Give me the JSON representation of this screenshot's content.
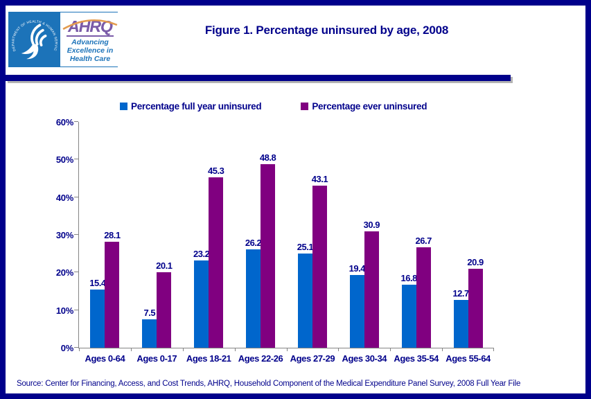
{
  "header": {
    "title": "Figure 1. Percentage uninsured by age, 2008",
    "logo": {
      "seal_text": "DEPARTMENT OF HEALTH & HUMAN SERVICES • USA",
      "acronym": "AHRQ",
      "tagline": "Advancing Excellence in Health Care"
    }
  },
  "chart_data": {
    "type": "bar",
    "title": "Figure 1. Percentage uninsured by age, 2008",
    "categories": [
      "Ages 0-64",
      "Ages 0-17",
      "Ages 18-21",
      "Ages 22-26",
      "Ages 27-29",
      "Ages 30-34",
      "Ages 35-54",
      "Ages 55-64"
    ],
    "series": [
      {
        "name": "Percentage full year uninsured",
        "color": "#0066CC",
        "values": [
          15.4,
          7.5,
          23.2,
          26.2,
          25.1,
          19.4,
          16.8,
          12.7
        ]
      },
      {
        "name": "Percentage ever uninsured",
        "color": "#800080",
        "values": [
          28.1,
          20.1,
          45.3,
          48.8,
          43.1,
          30.9,
          26.7,
          20.9
        ]
      }
    ],
    "ylabel": "",
    "xlabel": "",
    "ylim": [
      0,
      60
    ],
    "ytick_step": 10,
    "ytick_labels": [
      "0%",
      "10%",
      "20%",
      "30%",
      "40%",
      "50%",
      "60%"
    ],
    "grid": false,
    "legend_position": "top",
    "data_labels": true
  },
  "footer": {
    "source": "Source: Center for Financing, Access, and Cost Trends, AHRQ, Household Component of the Medical Expenditure Panel Survey, 2008 Full Year File"
  },
  "colors": {
    "text_navy": "#00008B",
    "border_navy": "#00008B",
    "bar_blue": "#0066CC",
    "bar_purple": "#800080",
    "axis_gray": "#848484",
    "logo_blue": "#1C73B9",
    "logo_purple": "#7A5BA8",
    "logo_arc_orange": "#E39B4E"
  }
}
